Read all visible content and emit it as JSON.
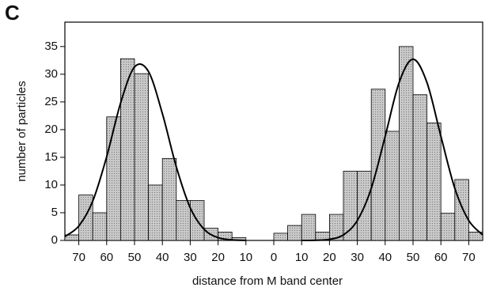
{
  "chart_data": {
    "type": "histogram",
    "panel_label": "C",
    "xlabel": "distance from M band center",
    "ylabel": "number of particles",
    "bins": [
      -75,
      -70,
      -65,
      -60,
      -55,
      -50,
      -45,
      -40,
      -35,
      -30,
      -25,
      -20,
      -15,
      -10,
      -5,
      0,
      5,
      10,
      15,
      20,
      25,
      30,
      35,
      40,
      45,
      50,
      55,
      60,
      65,
      70,
      75
    ],
    "values": [
      1,
      8.2,
      5,
      22.3,
      32.8,
      30.1,
      10,
      14.8,
      7.2,
      7.2,
      2.2,
      1.5,
      0.5,
      0,
      0,
      1.3,
      2.7,
      4.7,
      1.5,
      4.7,
      12.5,
      12.5,
      27.3,
      19.7,
      35,
      26.3,
      21.2,
      4.9,
      11,
      1.5
    ],
    "color": "#bdbdbd",
    "curves": [
      {
        "x": [
          -75,
          -70,
          -65,
          -60,
          -55,
          -50,
          -45,
          -40,
          -35,
          -30,
          -25,
          -20,
          -15,
          -10
        ],
        "values": [
          0.7,
          2.6,
          7.1,
          15.1,
          24.8,
          31.3,
          30.5,
          22.9,
          13.3,
          5.9,
          2.0,
          0.5,
          0.1,
          0
        ],
        "color": "#000000"
      },
      {
        "x": [
          10,
          15,
          20,
          25,
          30,
          35,
          40,
          45,
          50,
          55,
          60,
          65,
          70,
          75
        ],
        "values": [
          0,
          0.04,
          0.2,
          1.0,
          3.6,
          9.4,
          18.8,
          28.5,
          32.7,
          28.5,
          18.8,
          9.4,
          3.6,
          1.0
        ],
        "color": "#000000"
      }
    ],
    "xlim": [
      -75,
      75
    ],
    "xticks": [
      {
        "value": -70,
        "label": "70"
      },
      {
        "value": -60,
        "label": "60"
      },
      {
        "value": -50,
        "label": "50"
      },
      {
        "value": -40,
        "label": "40"
      },
      {
        "value": -30,
        "label": "30"
      },
      {
        "value": -20,
        "label": "20"
      },
      {
        "value": -10,
        "label": "10"
      },
      0,
      10,
      20,
      30,
      40,
      50,
      60,
      70
    ],
    "ylim": [
      0,
      39.4
    ],
    "yticks": [
      0,
      5,
      10,
      15,
      20,
      25,
      30,
      35
    ]
  }
}
